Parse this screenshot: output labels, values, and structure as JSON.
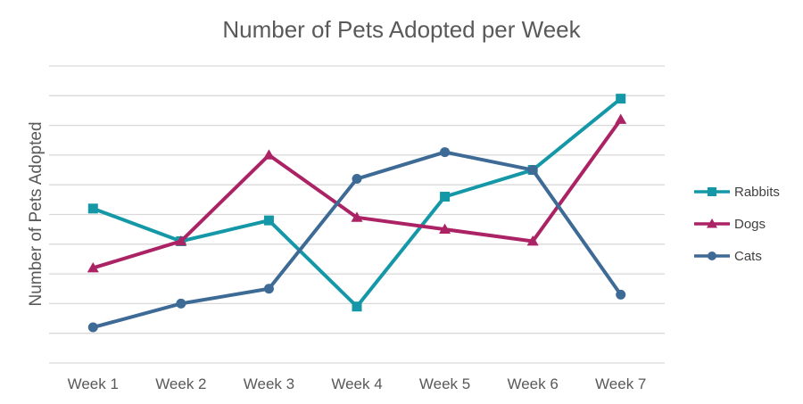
{
  "chart_data": {
    "type": "line",
    "title": "Number of Pets Adopted per Week",
    "xlabel": "",
    "ylabel": "Number of Pets Adopted",
    "categories": [
      "Week 1",
      "Week 2",
      "Week 3",
      "Week 4",
      "Week 5",
      "Week 6",
      "Week 7"
    ],
    "ylim": [
      0,
      10
    ],
    "grid": true,
    "legend_position": "right",
    "series": [
      {
        "name": "Rabbits",
        "color": "#1498a8",
        "marker": "square",
        "values": [
          5.2,
          4.1,
          4.8,
          1.9,
          5.6,
          6.5,
          8.9
        ]
      },
      {
        "name": "Dogs",
        "color": "#ab2364",
        "marker": "triangle",
        "values": [
          3.2,
          4.1,
          7.0,
          4.9,
          4.5,
          4.1,
          8.2
        ]
      },
      {
        "name": "Cats",
        "color": "#3e6a96",
        "marker": "circle",
        "values": [
          1.2,
          2.0,
          2.5,
          6.2,
          7.1,
          6.5,
          2.3
        ]
      }
    ]
  }
}
